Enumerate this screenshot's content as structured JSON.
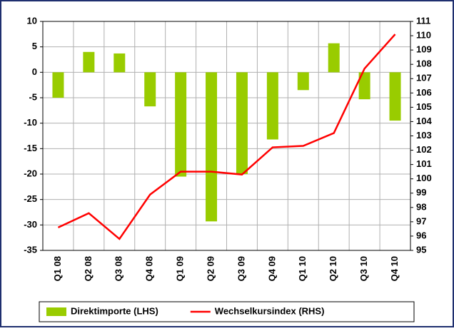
{
  "chart_data": {
    "type": "bar",
    "categories": [
      "Q1 08",
      "Q2 08",
      "Q3 08",
      "Q4 08",
      "Q1 09",
      "Q2 09",
      "Q3 09",
      "Q4 09",
      "Q1 10",
      "Q2 10",
      "Q3 10",
      "Q4 10"
    ],
    "series": [
      {
        "name": "Direktimporte (LHS)",
        "color": "#99cc00",
        "type": "bar",
        "values": [
          -5,
          4,
          3.7,
          -6.7,
          -20.5,
          -29.3,
          -20,
          -13.2,
          -3.5,
          5.7,
          -5.3,
          -9.5
        ]
      },
      {
        "name": "Wechselkursindex (RHS)",
        "color": "#ff0000",
        "type": "line",
        "axis": "y2",
        "values": [
          96.6,
          97.6,
          95.8,
          98.9,
          100.5,
          100.5,
          100.3,
          102.2,
          102.3,
          103.2,
          107.7,
          110.1
        ]
      }
    ],
    "ylim": [
      -35,
      10
    ],
    "yticks": [
      10,
      5,
      0,
      -5,
      -10,
      -15,
      -20,
      -25,
      -30,
      -35
    ],
    "y2lim": [
      95,
      111
    ],
    "y2ticks": [
      111,
      110,
      109,
      108,
      107,
      106,
      105,
      104,
      103,
      102,
      101,
      100,
      99,
      98,
      97,
      96,
      95
    ],
    "grid": true,
    "legend": "bottom"
  }
}
